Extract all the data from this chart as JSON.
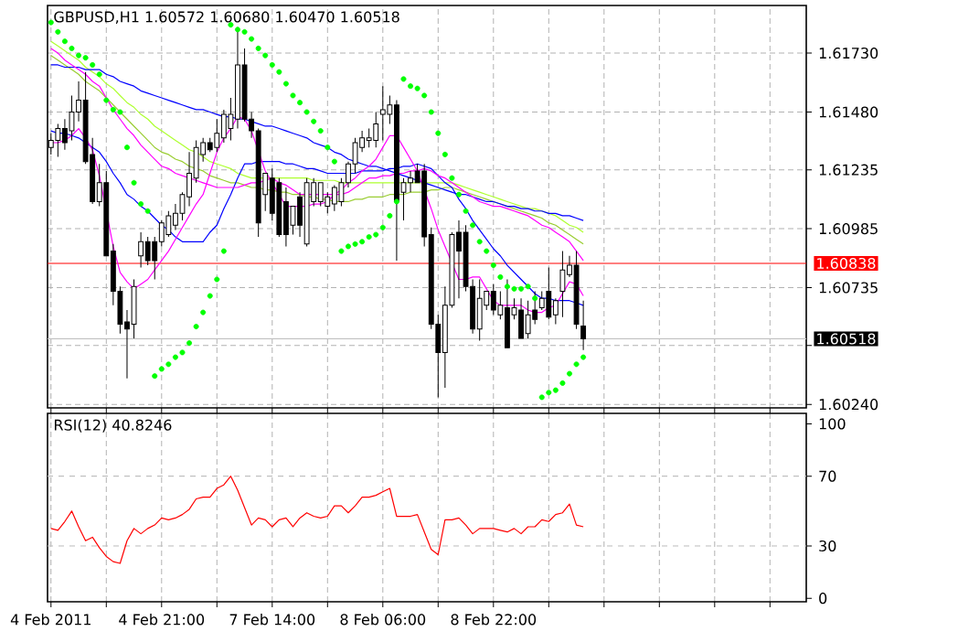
{
  "chart_data": [
    {
      "type": "candlestick",
      "title": "GBPUSD,H1 1.60572 1.60680 1.60470 1.60518",
      "categories": [
        null,
        null,
        null,
        null,
        null,
        null,
        null,
        null,
        null,
        null,
        null,
        null,
        null,
        null,
        null,
        null,
        null,
        null,
        null,
        null,
        null,
        null,
        null,
        null,
        null,
        null,
        null,
        null,
        null,
        null,
        null,
        null,
        null,
        null,
        null,
        null,
        null,
        null,
        null,
        null,
        null,
        null,
        null,
        null,
        null,
        null,
        null,
        null,
        null,
        null,
        null,
        null,
        null,
        null,
        null,
        null,
        null,
        null,
        null,
        null,
        null,
        null,
        null,
        null,
        null,
        null,
        null,
        null,
        null,
        null,
        null,
        null,
        null,
        null,
        null,
        null,
        null,
        null
      ],
      "ohlc": [
        [
          1.6133,
          1.6139,
          1.613,
          1.6136
        ],
        [
          1.6136,
          1.6143,
          1.6129,
          1.6141
        ],
        [
          1.6141,
          1.6145,
          1.6132,
          1.6135
        ],
        [
          1.614,
          1.6155,
          1.6136,
          1.6148
        ],
        [
          1.6148,
          1.6161,
          1.6144,
          1.6153
        ],
        [
          1.6153,
          1.6165,
          1.6126,
          1.6127
        ],
        [
          1.613,
          1.6137,
          1.6109,
          1.611
        ],
        [
          1.611,
          1.6126,
          1.6108,
          1.6118
        ],
        [
          1.6118,
          1.6123,
          1.6087,
          1.6087
        ],
        [
          1.6089,
          1.6092,
          1.6066,
          1.6072
        ],
        [
          1.6072,
          1.6074,
          1.6054,
          1.6058
        ],
        [
          1.6059,
          1.6064,
          1.6035,
          1.6056
        ],
        [
          1.6058,
          1.6077,
          1.6052,
          1.6074
        ],
        [
          1.6087,
          1.6097,
          1.6082,
          1.6093
        ],
        [
          1.6093,
          1.6095,
          1.6083,
          1.6085
        ],
        [
          1.6093,
          1.6095,
          1.6077,
          1.6085
        ],
        [
          1.6093,
          1.6102,
          1.6091,
          1.6101
        ],
        [
          1.6096,
          1.6106,
          1.6095,
          1.6104
        ],
        [
          1.61,
          1.6109,
          1.6098,
          1.6105
        ],
        [
          1.6105,
          1.6114,
          1.6102,
          1.6113
        ],
        [
          1.6112,
          1.6131,
          1.6108,
          1.6122
        ],
        [
          1.612,
          1.6136,
          1.6118,
          1.6133
        ],
        [
          1.613,
          1.6137,
          1.6127,
          1.6135
        ],
        [
          1.6135,
          1.6137,
          1.6131,
          1.6132
        ],
        [
          1.6133,
          1.6145,
          1.6131,
          1.6139
        ],
        [
          1.6137,
          1.6149,
          1.6135,
          1.6147
        ],
        [
          1.6141,
          1.6154,
          1.6136,
          1.6147
        ],
        [
          1.6145,
          1.6184,
          1.6141,
          1.6168
        ],
        [
          1.6168,
          1.6175,
          1.6144,
          1.6145
        ],
        [
          1.6145,
          1.6148,
          1.6137,
          1.614
        ],
        [
          1.614,
          1.6141,
          1.6095,
          1.6101
        ],
        [
          1.6113,
          1.6122,
          1.6106,
          1.6122
        ],
        [
          1.612,
          1.6124,
          1.6102,
          1.6105
        ],
        [
          1.6118,
          1.612,
          1.6095,
          1.6096
        ],
        [
          1.611,
          1.6116,
          1.6091,
          1.6096
        ],
        [
          1.61,
          1.6108,
          1.6096,
          1.6108
        ],
        [
          1.6112,
          1.6114,
          1.6095,
          1.61
        ],
        [
          1.6092,
          1.612,
          1.6091,
          1.6118
        ],
        [
          1.611,
          1.612,
          1.6108,
          1.6118
        ],
        [
          1.611,
          1.6118,
          1.6108,
          1.6118
        ],
        [
          1.6108,
          1.6114,
          1.6105,
          1.6112
        ],
        [
          1.6109,
          1.6117,
          1.6106,
          1.6116
        ],
        [
          1.611,
          1.612,
          1.6108,
          1.6118
        ],
        [
          1.6118,
          1.6127,
          1.6116,
          1.6126
        ],
        [
          1.6126,
          1.6137,
          1.6122,
          1.6135
        ],
        [
          1.6133,
          1.614,
          1.6131,
          1.6137
        ],
        [
          1.6136,
          1.6141,
          1.6133,
          1.6137
        ],
        [
          1.6136,
          1.6148,
          1.6133,
          1.6143
        ],
        [
          1.6147,
          1.6159,
          1.6136,
          1.6149
        ],
        [
          1.6147,
          1.6155,
          1.6143,
          1.6151
        ],
        [
          1.6151,
          1.6153,
          1.6085,
          1.611
        ],
        [
          1.6114,
          1.612,
          1.6102,
          1.6118
        ],
        [
          1.6118,
          1.6123,
          1.6114,
          1.612
        ],
        [
          1.6123,
          1.6126,
          1.6118,
          1.6118
        ],
        [
          1.6123,
          1.6126,
          1.6091,
          1.6095
        ],
        [
          1.6096,
          1.6099,
          1.6056,
          1.6058
        ],
        [
          1.6058,
          1.6062,
          1.6027,
          1.6046
        ],
        [
          1.6046,
          1.6074,
          1.6031,
          1.6066
        ],
        [
          1.6066,
          1.6097,
          1.6065,
          1.6096
        ],
        [
          1.6097,
          1.6102,
          1.6069,
          1.6089
        ],
        [
          1.6097,
          1.61,
          1.6072,
          1.6074
        ],
        [
          1.6074,
          1.6077,
          1.6054,
          1.6056
        ],
        [
          1.6056,
          1.6077,
          1.6051,
          1.6069
        ],
        [
          1.6066,
          1.6072,
          1.6064,
          1.6072
        ],
        [
          1.6072,
          1.6075,
          1.6062,
          1.6064
        ],
        [
          1.6062,
          1.6072,
          1.606,
          1.6066
        ],
        [
          1.6065,
          1.6077,
          1.6048,
          1.6048
        ],
        [
          1.6062,
          1.6069,
          1.606,
          1.6065
        ],
        [
          1.6064,
          1.6069,
          1.6052,
          1.6052
        ],
        [
          1.6054,
          1.6068,
          1.6052,
          1.6062
        ],
        [
          1.6064,
          1.6072,
          1.6058,
          1.606
        ],
        [
          1.6065,
          1.6072,
          1.6064,
          1.6069
        ],
        [
          1.6072,
          1.6082,
          1.606,
          1.6061
        ],
        [
          1.6062,
          1.6069,
          1.6058,
          1.6068
        ],
        [
          1.6072,
          1.6089,
          1.6061,
          1.6081
        ],
        [
          1.6079,
          1.6087,
          1.6078,
          1.6083
        ],
        [
          1.6083,
          1.6089,
          1.6056,
          1.6058
        ],
        [
          1.60572,
          1.6068,
          1.6047,
          1.60518
        ]
      ],
      "series": [
        {
          "type": "line",
          "color": "#adff2f",
          "values": [
            1.6178,
            1.6176,
            1.6174,
            1.6172,
            1.617,
            1.6167,
            1.6165,
            1.6163,
            1.616,
            1.6158,
            1.6155,
            1.6152,
            1.615,
            1.6147,
            1.6145,
            1.6142,
            1.614,
            1.6138,
            1.6136,
            1.6134,
            1.6132,
            1.6131,
            1.6129,
            1.6127,
            1.6126,
            1.6125,
            1.6124,
            1.6122,
            1.6121,
            1.612,
            1.612,
            1.612,
            1.612,
            1.612,
            1.612,
            1.612,
            1.612,
            1.612,
            1.6119,
            1.6119,
            1.6119,
            1.6119,
            1.6118,
            1.6118,
            1.6118,
            1.6118,
            1.6118,
            1.6118,
            1.6118,
            1.6118,
            1.6118,
            1.6118,
            1.6118,
            1.6118,
            1.6118,
            1.6118,
            1.6118,
            1.6118,
            1.6118,
            1.6117,
            1.6116,
            1.6115,
            1.6114,
            1.6113,
            1.6112,
            1.6111,
            1.611,
            1.6109,
            1.6108,
            1.6107,
            1.6107,
            1.6106,
            1.6105,
            1.6104,
            1.6102,
            1.61,
            1.6099,
            1.6097
          ]
        },
        {
          "type": "line",
          "color": "#9acd32",
          "values": [
            1.6172,
            1.617,
            1.6168,
            1.6166,
            1.6164,
            1.6161,
            1.6159,
            1.6157,
            1.6154,
            1.6151,
            1.6148,
            1.6145,
            1.6142,
            1.6139,
            1.6136,
            1.6133,
            1.6131,
            1.613,
            1.6128,
            1.6127,
            1.6125,
            1.6124,
            1.6123,
            1.6121,
            1.612,
            1.6119,
            1.6118,
            1.6118,
            1.6117,
            1.6116,
            1.6116,
            1.6115,
            1.6115,
            1.6114,
            1.6114,
            1.6113,
            1.6113,
            1.6112,
            1.6112,
            1.6111,
            1.6111,
            1.611,
            1.611,
            1.611,
            1.6111,
            1.6111,
            1.6112,
            1.6112,
            1.6112,
            1.6113,
            1.6113,
            1.6113,
            1.6114,
            1.6114,
            1.6114,
            1.6115,
            1.6115,
            1.6116,
            1.6116,
            1.6115,
            1.6114,
            1.6113,
            1.6112,
            1.6111,
            1.611,
            1.6109,
            1.6108,
            1.6107,
            1.6106,
            1.6105,
            1.6104,
            1.6103,
            1.6101,
            1.61,
            1.6098,
            1.6096,
            1.6094,
            1.6092
          ]
        },
        {
          "type": "line",
          "color": "#0000ff",
          "values": [
            1.6168,
            1.6168,
            1.6167,
            1.6167,
            1.6167,
            1.6166,
            1.6166,
            1.6166,
            1.6164,
            1.6163,
            1.6161,
            1.616,
            1.6159,
            1.6157,
            1.6156,
            1.6155,
            1.6154,
            1.6153,
            1.6152,
            1.6151,
            1.615,
            1.6149,
            1.6149,
            1.6148,
            1.6147,
            1.6146,
            1.6146,
            1.6145,
            1.6145,
            1.6144,
            1.6143,
            1.6142,
            1.6142,
            1.6141,
            1.614,
            1.6139,
            1.6138,
            1.6137,
            1.6135,
            1.6134,
            1.6133,
            1.6131,
            1.613,
            1.6128,
            1.6127,
            1.6126,
            1.6125,
            1.6125,
            1.6124,
            1.6123,
            1.6122,
            1.6121,
            1.612,
            1.6119,
            1.6118,
            1.6117,
            1.6116,
            1.6115,
            1.6114,
            1.6113,
            1.6113,
            1.6112,
            1.6111,
            1.611,
            1.611,
            1.6109,
            1.6108,
            1.6108,
            1.6107,
            1.6107,
            1.6106,
            1.6106,
            1.6105,
            1.6105,
            1.6104,
            1.6104,
            1.6103,
            1.6102
          ]
        },
        {
          "type": "line",
          "color": "#0000ff",
          "values": [
            1.614,
            1.6139,
            1.6139,
            1.6138,
            1.6137,
            1.6135,
            1.6133,
            1.6131,
            1.6127,
            1.6122,
            1.6118,
            1.6113,
            1.6111,
            1.6108,
            1.6106,
            1.6103,
            1.61,
            1.6098,
            1.6095,
            1.6093,
            1.6093,
            1.6093,
            1.6093,
            1.6097,
            1.61,
            1.6107,
            1.6113,
            1.612,
            1.6126,
            1.6126,
            1.6127,
            1.6127,
            1.6127,
            1.6127,
            1.6126,
            1.6126,
            1.6125,
            1.6124,
            1.6124,
            1.6123,
            1.6122,
            1.6122,
            1.6122,
            1.6122,
            1.6122,
            1.6123,
            1.6123,
            1.6123,
            1.6123,
            1.6124,
            1.6124,
            1.6125,
            1.6125,
            1.6126,
            1.6125,
            1.6124,
            1.6121,
            1.6118,
            1.6116,
            1.6111,
            1.6107,
            1.6102,
            1.6098,
            1.6094,
            1.609,
            1.6087,
            1.6083,
            1.608,
            1.6077,
            1.6074,
            1.6071,
            1.6069,
            1.6069,
            1.6068,
            1.6068,
            1.6068,
            1.6067,
            1.6066
          ]
        },
        {
          "type": "line",
          "color": "#ff00ff",
          "values": [
            1.6175,
            1.6173,
            1.617,
            1.6168,
            1.6166,
            1.6164,
            1.6161,
            1.6159,
            1.6154,
            1.6149,
            1.6145,
            1.6141,
            1.6138,
            1.6134,
            1.6131,
            1.6128,
            1.6125,
            1.6124,
            1.6122,
            1.6121,
            1.612,
            1.6119,
            1.6118,
            1.6117,
            1.6116,
            1.6116,
            1.6116,
            1.6116,
            1.6117,
            1.6118,
            1.6118,
            1.6119,
            1.612,
            1.6118,
            1.6117,
            1.6115,
            1.6113,
            1.6113,
            1.6113,
            1.6113,
            1.6113,
            1.6113,
            1.6113,
            1.6114,
            1.6116,
            1.6118,
            1.612,
            1.612,
            1.6121,
            1.6121,
            1.6122,
            1.6122,
            1.6123,
            1.6123,
            1.6124,
            1.6123,
            1.6121,
            1.612,
            1.6118,
            1.6116,
            1.6114,
            1.6112,
            1.611,
            1.6109,
            1.6108,
            1.6108,
            1.6107,
            1.6106,
            1.6105,
            1.6104,
            1.6102,
            1.61,
            1.6099,
            1.6097,
            1.6095,
            1.6093,
            1.6089,
            1.6085
          ]
        },
        {
          "type": "line",
          "color": "#ff00ff",
          "values": [
            1.6135,
            1.6135,
            1.6136,
            1.6138,
            1.6141,
            1.6137,
            1.6132,
            1.6121,
            null,
            1.6091,
            1.608,
            1.6076,
            1.6073,
            1.6075,
            1.6077,
            1.6081,
            1.6085,
            1.6089,
            1.6094,
            1.6099,
            1.6104,
            1.6109,
            1.6113,
            1.6122,
            1.6131,
            1.6137,
            1.6141,
            1.6146,
            1.6145,
            1.614,
            null,
            1.6123,
            1.6118,
            1.6113,
            1.6108,
            1.6108,
            1.6108,
            1.6108,
            1.6109,
            1.6109,
            1.611,
            1.6113,
            1.6115,
            1.6118,
            1.612,
            1.6123,
            1.6125,
            1.6128,
            1.6133,
            1.6138,
            1.6138,
            1.6133,
            1.6128,
            1.6123,
            null,
            1.6107,
            1.6098,
            1.6091,
            1.6084,
            1.6077,
            1.6077,
            1.6078,
            1.6078,
            1.6073,
            1.6068,
            1.6066,
            1.6066,
            1.6066,
            1.6066,
            1.6064,
            1.6063,
            1.6063,
            1.6065,
            1.6066,
            1.6071,
            1.6076,
            1.6075,
            1.607
          ]
        },
        {
          "type": "scatter",
          "color": "#00ff00",
          "marker": "circle",
          "values": [
            1.6186,
            1.6182,
            1.6178,
            1.6175,
            1.6172,
            1.6171,
            1.6168,
            1.6164,
            1.6153,
            1.6149,
            1.6148,
            1.6133,
            1.6118,
            1.6109,
            1.6106,
            1.6036,
            1.6039,
            1.6041,
            1.6044,
            1.6046,
            1.605,
            1.6057,
            1.6063,
            1.607,
            1.6077,
            1.6089,
            1.6185,
            1.6183,
            1.6182,
            1.6179,
            1.6175,
            1.6172,
            1.6168,
            1.6165,
            1.616,
            1.6155,
            1.6152,
            1.6148,
            1.6144,
            1.614,
            1.6133,
            1.6127,
            1.6089,
            1.6091,
            1.6092,
            1.6093,
            1.6095,
            1.6096,
            1.6099,
            1.6104,
            1.611,
            1.6162,
            1.6159,
            1.6158,
            1.6155,
            1.6148,
            1.6139,
            1.613,
            1.612,
            1.6113,
            1.6106,
            1.61,
            1.6093,
            1.6089,
            1.6083,
            1.6078,
            1.6074,
            1.6073,
            1.6073,
            1.6074,
            1.6069,
            1.6027,
            1.6029,
            1.603,
            1.6033,
            1.6037,
            1.6041,
            1.6044
          ]
        }
      ],
      "ylim": [
        1.60225,
        1.61932
      ],
      "yticks": [
        {
          "value": 1.6173,
          "label": "1.61730"
        },
        {
          "value": 1.6148,
          "label": "1.61480"
        },
        1.61235,
        1.60985,
        1.60735,
        {
          "value": 1.6049,
          "label": null
        },
        {
          "value": 1.6024,
          "label": "1.60240"
        }
      ],
      "grid": true,
      "tick_labels": "y",
      "ref_lines": [
        {
          "axis": "y",
          "value": 1.60838,
          "label": "1.60838",
          "color": "#ff0000"
        },
        {
          "axis": "y",
          "value": 1.60518,
          "label": "1.60518",
          "color": "#c0c0c0"
        }
      ]
    },
    {
      "type": "line",
      "title": "RSI(12) 40.8246",
      "categories": [
        "4 Feb 2011",
        null,
        null,
        null,
        null,
        null,
        null,
        null,
        null,
        null,
        null,
        null,
        null,
        null,
        null,
        null,
        "4 Feb 21:00",
        null,
        null,
        null,
        null,
        null,
        null,
        null,
        null,
        null,
        null,
        null,
        null,
        null,
        null,
        null,
        "7 Feb 14:00",
        null,
        null,
        null,
        null,
        null,
        null,
        null,
        null,
        null,
        null,
        null,
        null,
        null,
        null,
        null,
        "8 Feb 06:00",
        null,
        null,
        null,
        null,
        null,
        null,
        null,
        null,
        null,
        null,
        null,
        null,
        null,
        null,
        null,
        "8 Feb 22:00",
        null,
        null,
        null,
        null,
        null,
        null,
        null,
        null,
        null,
        null,
        null,
        null,
        null
      ],
      "series": [
        {
          "color": "#ff0000",
          "values": [
            40,
            39,
            44,
            50,
            41,
            33,
            35,
            29,
            24,
            21,
            20,
            33,
            40,
            37,
            40,
            42,
            46,
            45,
            46,
            48,
            51,
            57,
            58,
            58,
            63,
            65,
            70,
            62,
            52,
            42,
            46,
            45,
            41,
            45,
            46,
            41,
            46,
            49,
            47,
            46,
            47,
            53,
            53,
            49,
            53,
            58,
            58,
            59,
            61,
            63,
            47,
            47,
            47,
            48,
            38,
            28,
            25,
            45,
            45,
            46,
            42,
            37,
            40,
            40,
            40,
            39,
            38,
            40,
            37,
            41,
            41,
            45,
            44,
            48,
            49,
            54,
            42,
            41
          ]
        }
      ],
      "ylim": [
        -2,
        106
      ],
      "yticks": [
        0,
        30,
        70,
        100
      ],
      "grid": "x",
      "ref_lines": [
        {
          "axis": "y",
          "value": 30,
          "color": "#c0c0c0",
          "line_style": "dashed"
        },
        {
          "axis": "y",
          "value": 70,
          "color": "#c0c0c0",
          "line_style": "dashed"
        }
      ]
    }
  ]
}
